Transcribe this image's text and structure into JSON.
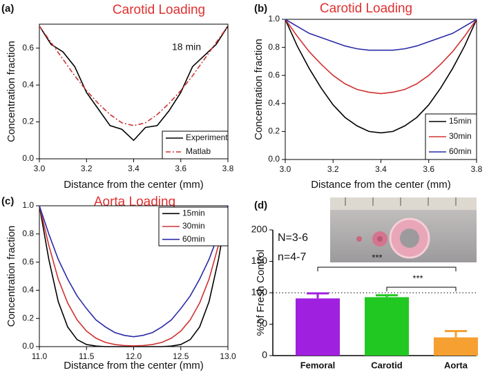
{
  "chart_data": [
    {
      "type": "line",
      "panel_label": "(a)",
      "title": "Carotid Loading",
      "xlabel": "Distance from the center (mm)",
      "ylabel": "Concentration fraction",
      "annotation": "18 min",
      "x": [
        3.0,
        3.05,
        3.1,
        3.15,
        3.2,
        3.25,
        3.3,
        3.35,
        3.4,
        3.45,
        3.5,
        3.55,
        3.6,
        3.65,
        3.7,
        3.75,
        3.8
      ],
      "series": [
        {
          "name": "Experiment",
          "color": "#000000",
          "dash": "solid",
          "values": [
            0.72,
            0.62,
            0.58,
            0.5,
            0.36,
            0.27,
            0.18,
            0.16,
            0.1,
            0.17,
            0.18,
            0.26,
            0.36,
            0.5,
            0.56,
            0.62,
            0.72
          ]
        },
        {
          "name": "Matlab",
          "color": "#d03030",
          "dash": "dash-dot",
          "values": [
            0.72,
            0.63,
            0.54,
            0.45,
            0.37,
            0.3,
            0.24,
            0.195,
            0.18,
            0.195,
            0.24,
            0.3,
            0.37,
            0.45,
            0.54,
            0.63,
            0.72
          ]
        }
      ],
      "xlim": [
        3.0,
        3.8
      ],
      "xticks": [
        {
          "value": 3.0,
          "label": "3.0"
        },
        3.2,
        3.4,
        3.6,
        3.8
      ],
      "ylim": [
        0,
        0.73
      ],
      "yticks": [
        {
          "value": 0,
          "label": "0.0"
        },
        0.2,
        0.4,
        0.6
      ],
      "legend": "lower-right"
    },
    {
      "type": "line",
      "panel_label": "(b)",
      "title": "Carotid Loading",
      "xlabel": "Distance from the center (mm)",
      "ylabel": "Concentration fraction",
      "x": [
        3.0,
        3.05,
        3.1,
        3.15,
        3.2,
        3.25,
        3.3,
        3.35,
        3.4,
        3.45,
        3.5,
        3.55,
        3.6,
        3.65,
        3.7,
        3.75,
        3.8
      ],
      "series": [
        {
          "name": "15min",
          "color": "#000000",
          "dash": "solid",
          "values": [
            1.0,
            0.81,
            0.65,
            0.51,
            0.39,
            0.3,
            0.24,
            0.2,
            0.19,
            0.2,
            0.24,
            0.3,
            0.39,
            0.51,
            0.65,
            0.81,
            1.0
          ]
        },
        {
          "name": "30min",
          "color": "#d03030",
          "dash": "solid",
          "values": [
            1.0,
            0.88,
            0.77,
            0.68,
            0.6,
            0.54,
            0.5,
            0.48,
            0.47,
            0.48,
            0.5,
            0.54,
            0.6,
            0.68,
            0.77,
            0.88,
            1.0
          ]
        },
        {
          "name": "60min",
          "color": "#2a2aa8",
          "dash": "solid",
          "values": [
            1.0,
            0.95,
            0.9,
            0.87,
            0.84,
            0.81,
            0.79,
            0.78,
            0.78,
            0.78,
            0.79,
            0.81,
            0.84,
            0.87,
            0.9,
            0.95,
            1.0
          ]
        }
      ],
      "xlim": [
        3.0,
        3.8
      ],
      "xticks": [
        {
          "value": 3.0,
          "label": "3.0"
        },
        3.2,
        3.4,
        3.6,
        3.8
      ],
      "ylim": [
        0,
        1.0
      ],
      "yticks": [
        {
          "value": 0,
          "label": "0.0"
        },
        0.2,
        0.4,
        0.6,
        0.8,
        {
          "value": 1.0,
          "label": "1.0"
        }
      ],
      "legend": "lower-right"
    },
    {
      "type": "line",
      "panel_label": "(c)",
      "title": "Aorta Loading",
      "xlabel": "Distance from the center (mm)",
      "ylabel": "Concentration fraction",
      "x": [
        11.0,
        11.1,
        11.2,
        11.3,
        11.4,
        11.5,
        11.6,
        11.7,
        11.8,
        11.9,
        12.0,
        12.1,
        12.2,
        12.3,
        12.4,
        12.5,
        12.6,
        12.7,
        12.8,
        12.9,
        13.0
      ],
      "series": [
        {
          "name": "15min",
          "color": "#000000",
          "dash": "solid",
          "values": [
            1.0,
            0.62,
            0.32,
            0.14,
            0.05,
            0.015,
            0.004,
            0,
            0,
            0,
            0,
            0,
            0,
            0,
            0.004,
            0.015,
            0.05,
            0.14,
            0.32,
            0.62,
            1.0
          ]
        },
        {
          "name": "30min",
          "color": "#d03030",
          "dash": "solid",
          "values": [
            1.0,
            0.72,
            0.48,
            0.31,
            0.19,
            0.11,
            0.06,
            0.03,
            0.015,
            0.008,
            0.005,
            0.008,
            0.015,
            0.03,
            0.06,
            0.11,
            0.19,
            0.31,
            0.48,
            0.72,
            1.0
          ]
        },
        {
          "name": "60min",
          "color": "#2a2aa8",
          "dash": "solid",
          "values": [
            1.0,
            0.8,
            0.62,
            0.48,
            0.36,
            0.27,
            0.19,
            0.14,
            0.1,
            0.08,
            0.07,
            0.08,
            0.1,
            0.14,
            0.19,
            0.27,
            0.36,
            0.48,
            0.62,
            0.8,
            1.0
          ]
        }
      ],
      "xlim": [
        11.0,
        13.0
      ],
      "xticks": [
        {
          "value": 11.0,
          "label": "11.0"
        },
        11.5,
        {
          "value": 12.0,
          "label": "12.0"
        },
        12.5,
        {
          "value": 13.0,
          "label": "13.0"
        }
      ],
      "ylim": [
        0,
        1.0
      ],
      "yticks": [
        {
          "value": 0,
          "label": "0.0"
        },
        0.2,
        0.4,
        0.6,
        0.8,
        {
          "value": 1.0,
          "label": "1.0"
        }
      ],
      "legend": "upper-right"
    },
    {
      "type": "bar",
      "panel_label": "(d)",
      "ylabel": "% of Fresh Control",
      "categories": [
        "Femoral",
        "Carotid",
        "Aorta"
      ],
      "values": [
        91,
        93,
        29
      ],
      "errors": [
        8,
        3,
        10
      ],
      "colors": [
        "#a020e0",
        "#22c822",
        "#f5a030"
      ],
      "ylim": [
        0,
        200
      ],
      "yticks": [
        0,
        50,
        100,
        150,
        200
      ],
      "reference_line": 100,
      "annotations": [
        "N=3-6",
        "n=4-7",
        "***",
        "***"
      ]
    }
  ]
}
